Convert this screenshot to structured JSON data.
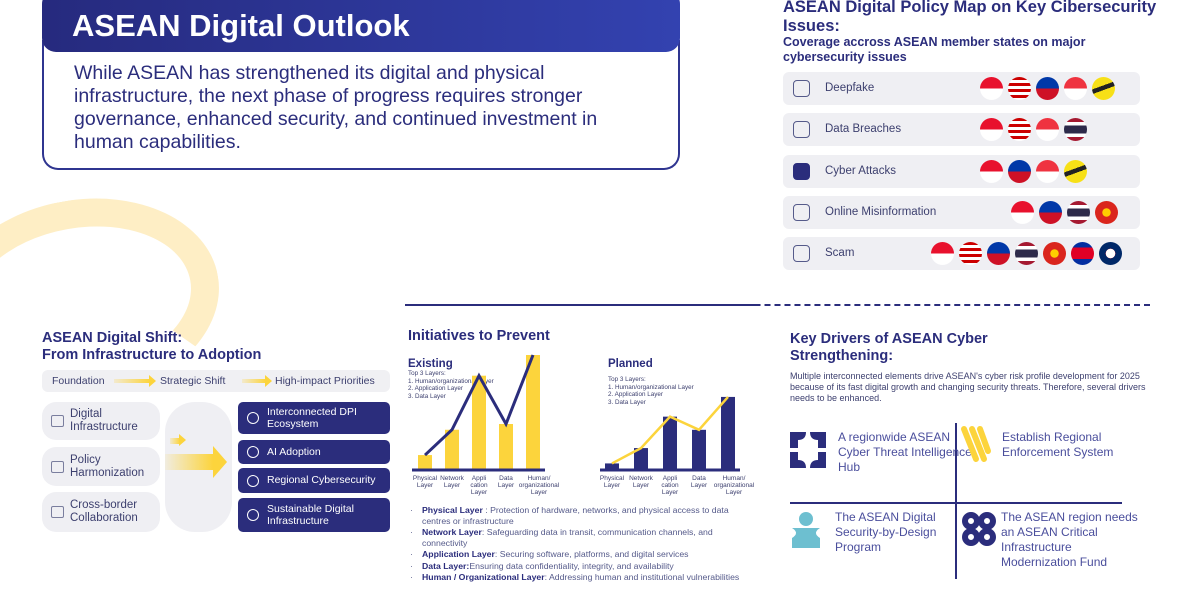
{
  "header": {
    "title": "ASEAN Digital Outlook",
    "intro": "While ASEAN has strengthened its digital and physical infrastructure, the next phase of progress requires stronger governance, enhanced security, and continued investment in human capabilities."
  },
  "policy_map": {
    "title": "ASEAN Digital Policy Map on Key Cibersecurity Issues:",
    "subtitle": "Coverage accross ASEAN member states on major cybersecurity issues",
    "rows": [
      {
        "label": "Deepfake",
        "icon": "deepfake-icon",
        "flags": [
          "ID",
          "MY",
          "PH",
          "SG",
          "BN"
        ]
      },
      {
        "label": "Data Breaches",
        "icon": "data-breach-icon",
        "flags": [
          "ID",
          "MY",
          "SG",
          "TH"
        ]
      },
      {
        "label": "Cyber Attacks",
        "icon": "cyber-attack-icon",
        "flags": [
          "ID",
          "PH",
          "SG",
          "BN"
        ]
      },
      {
        "label": "Online Misinformation",
        "icon": "misinformation-icon",
        "flags": [
          "ID",
          "PH",
          "TH",
          "VN"
        ]
      },
      {
        "label": "Scam",
        "icon": "scam-icon",
        "flags": [
          "ID",
          "MY",
          "PH",
          "TH",
          "VN",
          "KH",
          "LA"
        ]
      }
    ]
  },
  "shift": {
    "title_1": "ASEAN Digital Shift:",
    "title_2": "From Infrastructure to Adoption",
    "stages": [
      "Foundation",
      "Strategic Shift",
      "High-impact Priorities"
    ],
    "foundation": [
      "Digital Infrastructure",
      "Policy Harmonization",
      "Cross-border Collaboration"
    ],
    "priorities": [
      "Interconnected DPI Ecosystem",
      "AI Adoption",
      "Regional Cybersecurity",
      "Sustainable Digital Infrastructure"
    ]
  },
  "initiatives": {
    "title": "Initiatives to Prevent",
    "bullets": [
      {
        "term": "Physical Layer",
        "desc": " : Protection of hardware, networks, and physical access to data centres or infrastructure"
      },
      {
        "term": "Network Layer",
        "desc": ": Safeguarding data in transit, communication channels, and connectivity"
      },
      {
        "term": "Application Layer",
        "desc": ": Securing software, platforms, and digital services"
      },
      {
        "term": "Data Layer:",
        "desc": "Ensuring data confidentiality, integrity, and availability"
      },
      {
        "term": "Human / Organizational Layer",
        "desc": ": Addressing human and institutional vulnerabilities"
      }
    ]
  },
  "chart_data": [
    {
      "type": "bar",
      "title": "Existing",
      "note": "Top 3 Layers:",
      "top_layers": [
        "1. Human/organizational Layer",
        "2. Application Layer",
        "3. Data Layer"
      ],
      "categories": [
        "Physical Layer",
        "Network Layer",
        "Appli cation Layer",
        "Data Layer",
        "Human/ organizational Layer"
      ],
      "values": [
        1.3,
        3.5,
        8.2,
        4,
        10
      ],
      "ylim": [
        0,
        10
      ],
      "bar_color": "#fcd43c",
      "line_color": "#2b2d7c"
    },
    {
      "type": "bar",
      "title": "Planned",
      "note": "Top 3 Layers:",
      "top_layers": [
        "1. Human/organizational Layer",
        "2. Application Layer",
        "3. Data Layer"
      ],
      "categories": [
        "Physical Layer",
        "Network Layer",
        "Appli cation Layer",
        "Data Layer",
        "Human/ organizational Layer"
      ],
      "values": [
        0.9,
        3,
        7.3,
        5.5,
        10
      ],
      "ylim": [
        0,
        13
      ],
      "bar_color": "#2b2d7c",
      "line_color": "#fcd43c"
    }
  ],
  "drivers": {
    "title_1": "Key Drivers of ASEAN Cyber",
    "title_2": "Strengthening:",
    "text": "Multiple interconnected elements drive ASEAN's cyber risk profile development for 2025 because of its fast digital growth and changing security threats. Therefore, several drivers needs to be enhanced.",
    "items": [
      "A regionwide ASEAN Cyber Threat Intelligence Hub",
      "Establish  Regional Enforcement System",
      "The ASEAN Digital Security-by-Design Program",
      "The ASEAN region needs an ASEAN Critical Infrastructure Modernization Fund"
    ]
  },
  "colors": {
    "navy": "#2b2d7c",
    "yellow": "#fcd43c",
    "teal": "#6dbfd0"
  }
}
